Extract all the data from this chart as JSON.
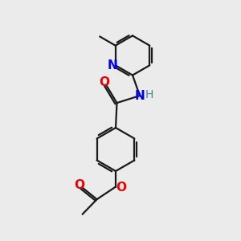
{
  "bg_color": "#ebebeb",
  "bond_color": "#1a1a1a",
  "N_color": "#0000ee",
  "O_color": "#ee0000",
  "H_color": "#4a8888",
  "line_width": 1.6,
  "font_size": 10.5,
  "fig_size": [
    3.0,
    3.0
  ],
  "dpi": 100,
  "xlim": [
    0,
    10
  ],
  "ylim": [
    0,
    10
  ]
}
